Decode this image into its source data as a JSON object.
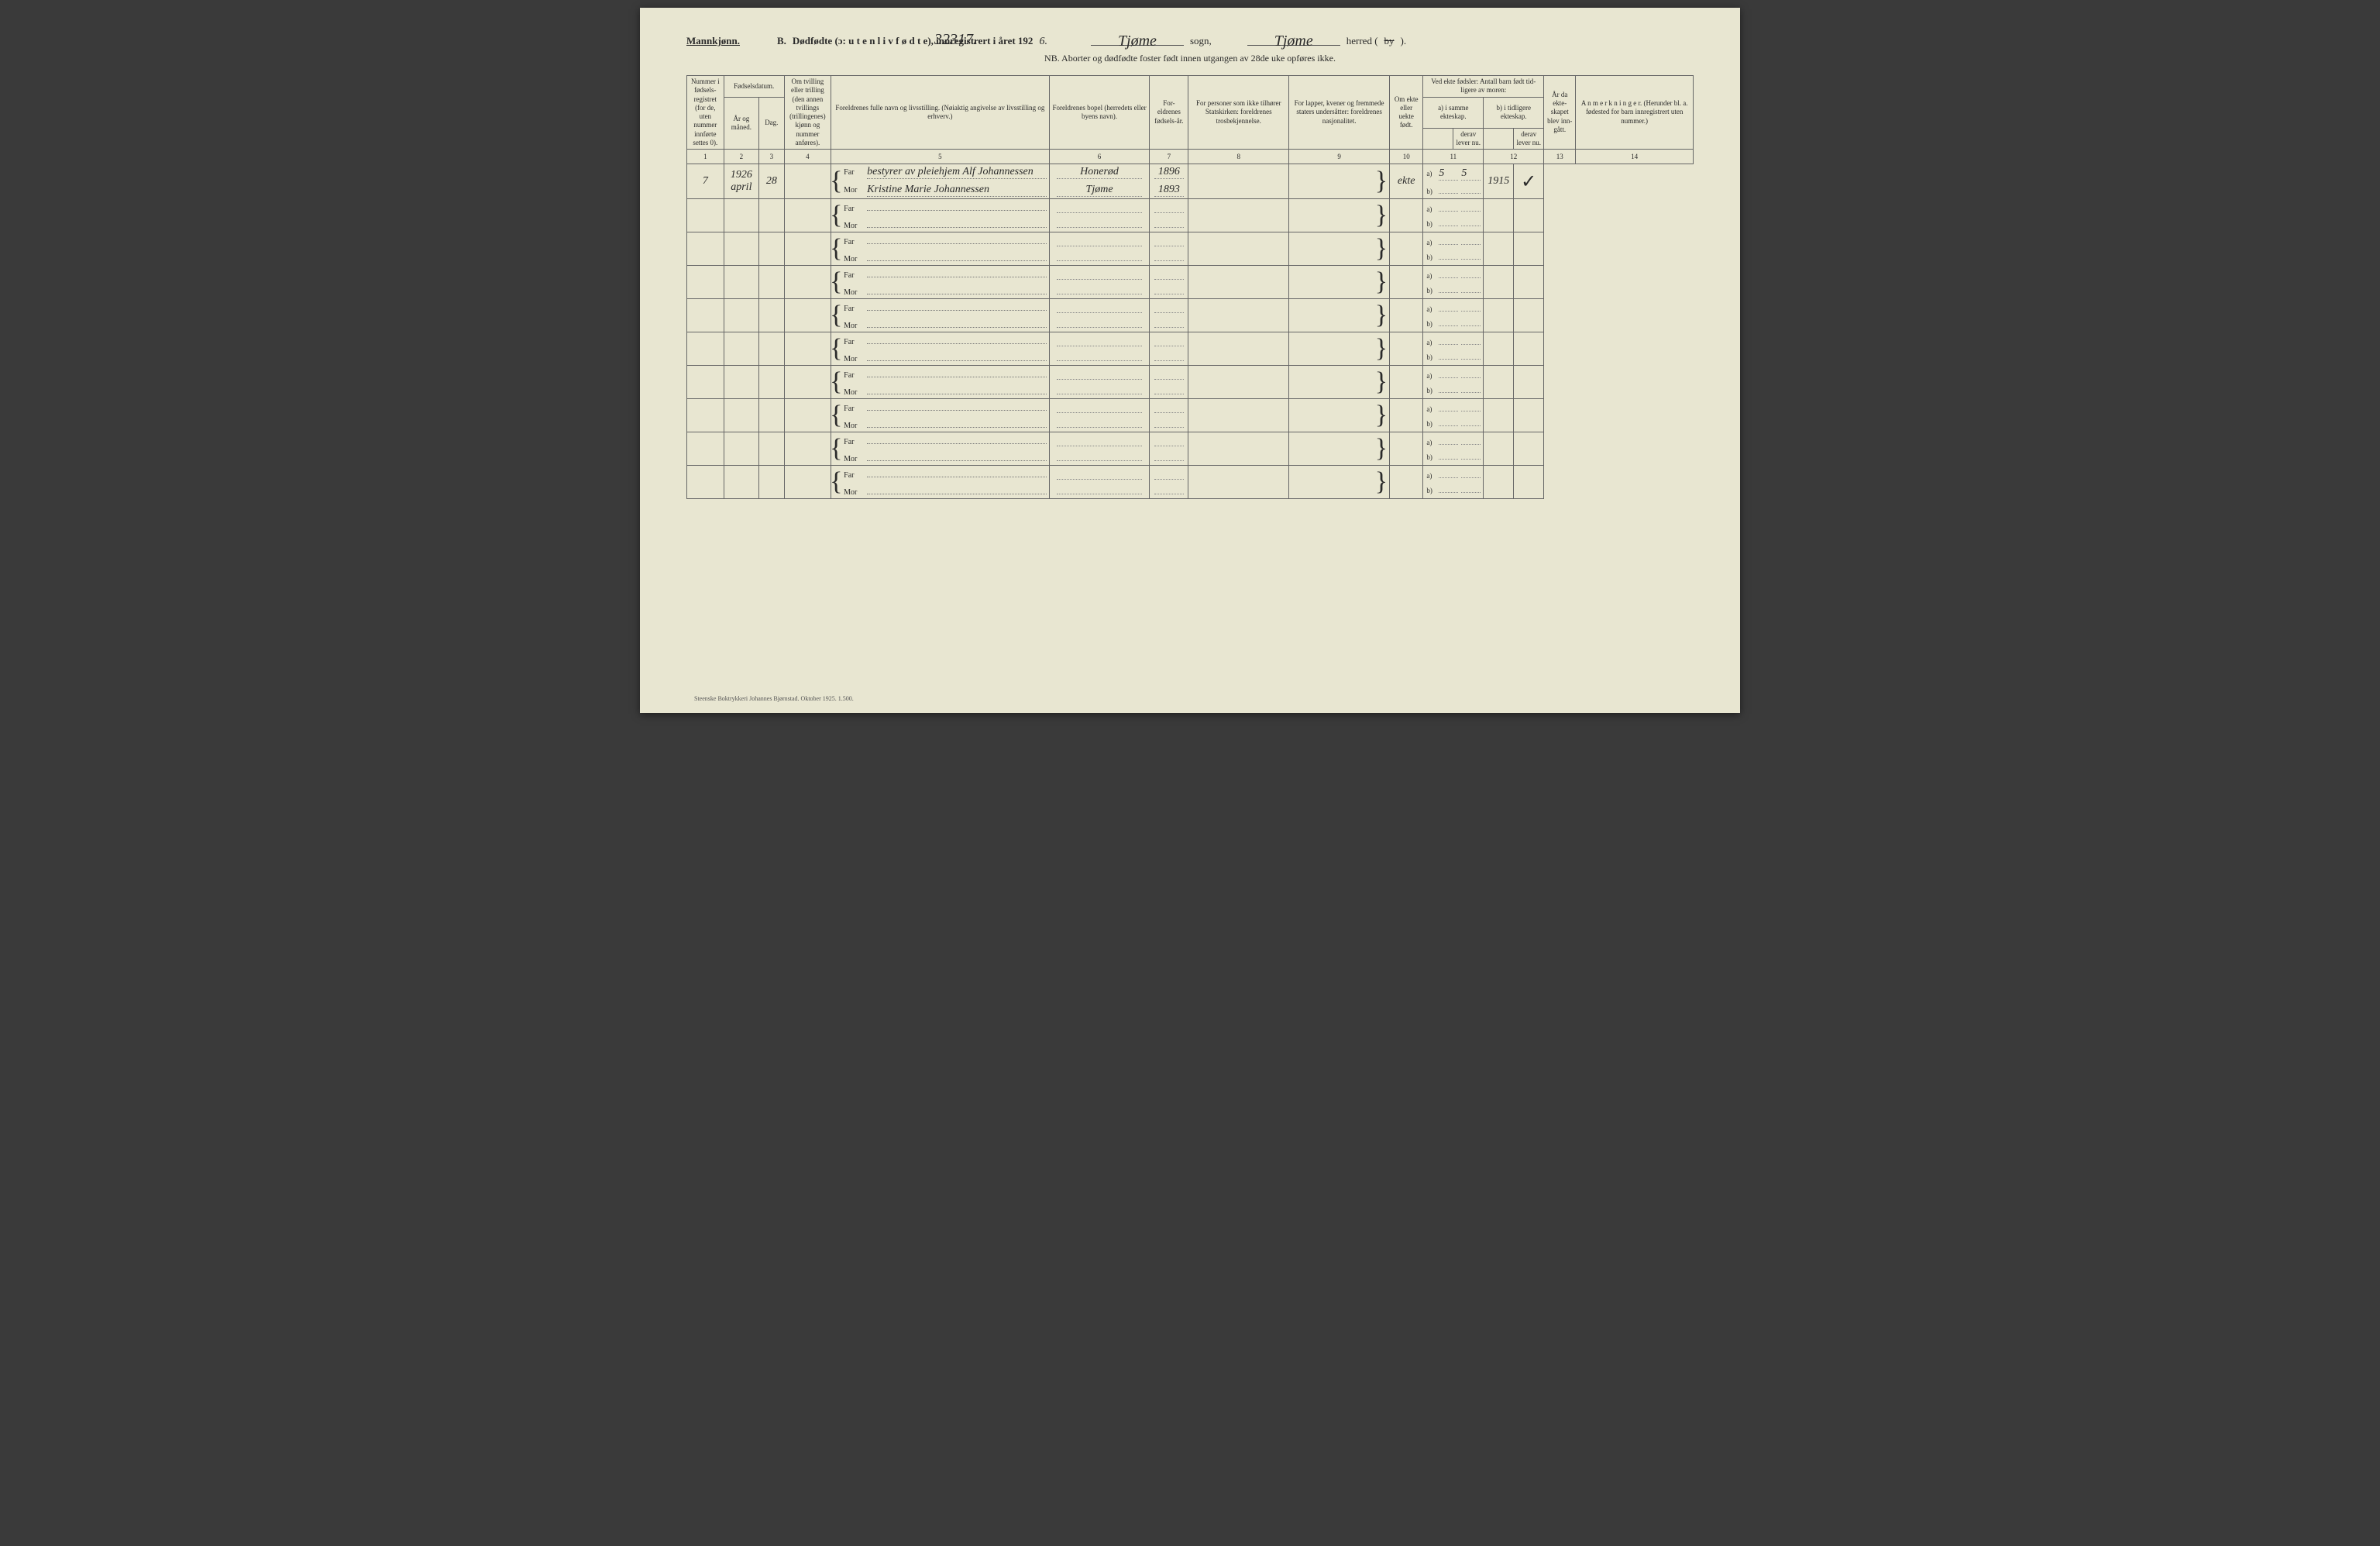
{
  "gender_label": "Mannkjønn.",
  "ref_number": "32317.",
  "title_prefix": "B.",
  "title_main": "Dødfødte (ɔ: u t e n  l i v  f ø d t e), innregistrert i året 192",
  "title_year_suffix": "6.",
  "sogn_word": "sogn,",
  "herred_word": "herred (",
  "herred_strike": "by",
  "herred_close": ").",
  "sogn_value": "Tjøme",
  "herred_value": "Tjøme",
  "nb_line": "NB. Aborter og dødfødte foster født innen utgangen av 28de uke opføres ikke.",
  "headers": {
    "c1": "Nummer i fødsels-registret (for de, uten nummer innførte settes 0).",
    "c2_top": "Fødselsdatum.",
    "c2a": "År og måned.",
    "c2b": "Dag.",
    "c4": "Om tvilling eller trilling (den annen tvillings (trillingenes) kjønn og nummer anføres).",
    "c5": "Foreldrenes fulle navn og livsstilling. (Nøiaktig angivelse av livsstilling og erhverv.)",
    "c6": "Foreldrenes bopel (herredets eller byens navn).",
    "c7": "For-eldrenes fødsels-år.",
    "c8": "For personer som ikke tilhører Statskirken: foreldrenes trosbekjennelse.",
    "c9": "For lapper, kvener og fremmede staters undersåtter: foreldrenes nasjonalitet.",
    "c10": "Om ekte eller uekte født.",
    "c11_top": "Ved ekte fødsler: Antall barn født tid-ligere av moren:",
    "c11a": "a) i samme ekteskap.",
    "c11a2": "derav lever nu.",
    "c11b": "b) i tidligere ekteskap.",
    "c11b2": "derav lever nu.",
    "c13": "År da ekte-skapet blev inn-gått.",
    "c14": "A n m e r k n i n g e r. (Herunder bl. a. fødested for barn innregistrert uten nummer.)"
  },
  "colnums": [
    "1",
    "2",
    "3",
    "4",
    "5",
    "6",
    "7",
    "8",
    "9",
    "10",
    "11",
    "12",
    "13",
    "14"
  ],
  "far_label": "Far",
  "mor_label": "Mor",
  "a_label": "a)",
  "b_label": "b)",
  "rows": [
    {
      "num": "7",
      "year_month": "1926 april",
      "day": "28",
      "twin": "",
      "far_name": "bestyrer av pleiehjem Alf Johannessen",
      "mor_name": "Kristine Marie Johannessen",
      "far_bopel": "Honerød",
      "mor_bopel": "Tjøme",
      "far_year": "1896",
      "mor_year": "1893",
      "relig": "",
      "nat": "",
      "ekte": "ekte",
      "a_same": "5",
      "a_live": "5",
      "b_prev": "",
      "b_live": "",
      "marriage_year": "1915",
      "remark": "✓"
    },
    {
      "num": "",
      "year_month": "",
      "day": "",
      "twin": "",
      "far_name": "",
      "mor_name": "",
      "far_bopel": "",
      "mor_bopel": "",
      "far_year": "",
      "mor_year": "",
      "relig": "",
      "nat": "",
      "ekte": "",
      "a_same": "",
      "a_live": "",
      "b_prev": "",
      "b_live": "",
      "marriage_year": "",
      "remark": ""
    },
    {
      "num": "",
      "year_month": "",
      "day": "",
      "twin": "",
      "far_name": "",
      "mor_name": "",
      "far_bopel": "",
      "mor_bopel": "",
      "far_year": "",
      "mor_year": "",
      "relig": "",
      "nat": "",
      "ekte": "",
      "a_same": "",
      "a_live": "",
      "b_prev": "",
      "b_live": "",
      "marriage_year": "",
      "remark": ""
    },
    {
      "num": "",
      "year_month": "",
      "day": "",
      "twin": "",
      "far_name": "",
      "mor_name": "",
      "far_bopel": "",
      "mor_bopel": "",
      "far_year": "",
      "mor_year": "",
      "relig": "",
      "nat": "",
      "ekte": "",
      "a_same": "",
      "a_live": "",
      "b_prev": "",
      "b_live": "",
      "marriage_year": "",
      "remark": ""
    },
    {
      "num": "",
      "year_month": "",
      "day": "",
      "twin": "",
      "far_name": "",
      "mor_name": "",
      "far_bopel": "",
      "mor_bopel": "",
      "far_year": "",
      "mor_year": "",
      "relig": "",
      "nat": "",
      "ekte": "",
      "a_same": "",
      "a_live": "",
      "b_prev": "",
      "b_live": "",
      "marriage_year": "",
      "remark": ""
    },
    {
      "num": "",
      "year_month": "",
      "day": "",
      "twin": "",
      "far_name": "",
      "mor_name": "",
      "far_bopel": "",
      "mor_bopel": "",
      "far_year": "",
      "mor_year": "",
      "relig": "",
      "nat": "",
      "ekte": "",
      "a_same": "",
      "a_live": "",
      "b_prev": "",
      "b_live": "",
      "marriage_year": "",
      "remark": ""
    },
    {
      "num": "",
      "year_month": "",
      "day": "",
      "twin": "",
      "far_name": "",
      "mor_name": "",
      "far_bopel": "",
      "mor_bopel": "",
      "far_year": "",
      "mor_year": "",
      "relig": "",
      "nat": "",
      "ekte": "",
      "a_same": "",
      "a_live": "",
      "b_prev": "",
      "b_live": "",
      "marriage_year": "",
      "remark": ""
    },
    {
      "num": "",
      "year_month": "",
      "day": "",
      "twin": "",
      "far_name": "",
      "mor_name": "",
      "far_bopel": "",
      "mor_bopel": "",
      "far_year": "",
      "mor_year": "",
      "relig": "",
      "nat": "",
      "ekte": "",
      "a_same": "",
      "a_live": "",
      "b_prev": "",
      "b_live": "",
      "marriage_year": "",
      "remark": ""
    },
    {
      "num": "",
      "year_month": "",
      "day": "",
      "twin": "",
      "far_name": "",
      "mor_name": "",
      "far_bopel": "",
      "mor_bopel": "",
      "far_year": "",
      "mor_year": "",
      "relig": "",
      "nat": "",
      "ekte": "",
      "a_same": "",
      "a_live": "",
      "b_prev": "",
      "b_live": "",
      "marriage_year": "",
      "remark": ""
    },
    {
      "num": "",
      "year_month": "",
      "day": "",
      "twin": "",
      "far_name": "",
      "mor_name": "",
      "far_bopel": "",
      "mor_bopel": "",
      "far_year": "",
      "mor_year": "",
      "relig": "",
      "nat": "",
      "ekte": "",
      "a_same": "",
      "a_live": "",
      "b_prev": "",
      "b_live": "",
      "marriage_year": "",
      "remark": ""
    }
  ],
  "footer": "Steenske Boktrykkeri Johannes Bjørnstad.  Oktober 1925.  1.500."
}
